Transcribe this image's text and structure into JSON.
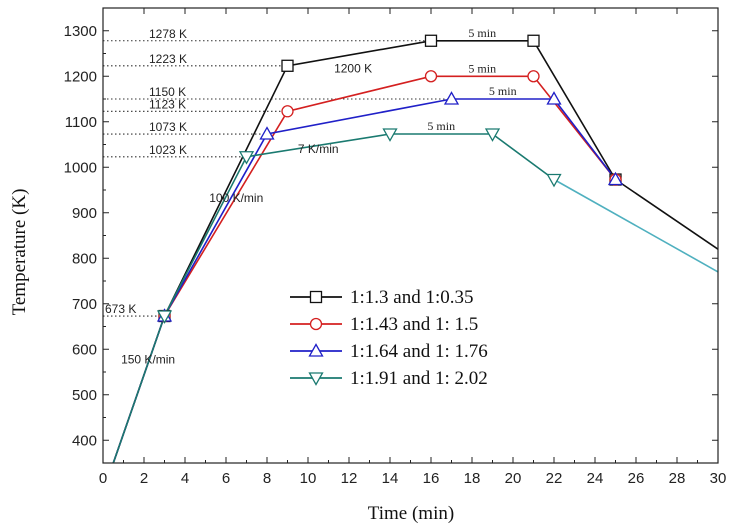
{
  "chart_data": {
    "type": "line",
    "xlabel": "Time (min)",
    "ylabel": "Temperature (K)",
    "xlim": [
      0,
      30
    ],
    "ylim": [
      350,
      1350
    ],
    "x_ticks": [
      0,
      2,
      4,
      6,
      8,
      10,
      12,
      14,
      16,
      18,
      20,
      22,
      24,
      26,
      28,
      30
    ],
    "y_ticks": [
      400,
      500,
      600,
      700,
      800,
      900,
      1000,
      1100,
      1200,
      1300
    ],
    "grid": false,
    "legend_position": "center-right",
    "series": [
      {
        "name": "1:1.3 and 1:0.35",
        "color": "#111111",
        "marker": "square",
        "points": [
          [
            0.5,
            350
          ],
          [
            3,
            673
          ],
          [
            9,
            1223
          ],
          [
            16,
            1278
          ],
          [
            21,
            1278
          ],
          [
            25,
            973
          ],
          [
            30,
            820
          ]
        ],
        "marker_points": [
          [
            3,
            673
          ],
          [
            9,
            1223
          ],
          [
            16,
            1278
          ],
          [
            21,
            1278
          ],
          [
            25,
            973
          ]
        ]
      },
      {
        "name": "1:1.43 and 1: 1.5",
        "color": "#d42020",
        "marker": "circle",
        "points": [
          [
            0.5,
            350
          ],
          [
            3,
            673
          ],
          [
            9,
            1123
          ],
          [
            16,
            1200
          ],
          [
            21,
            1200
          ],
          [
            25,
            973
          ]
        ],
        "marker_points": [
          [
            3,
            673
          ],
          [
            9,
            1123
          ],
          [
            16,
            1200
          ],
          [
            21,
            1200
          ],
          [
            25,
            973
          ]
        ]
      },
      {
        "name": "1:1.64 and 1: 1.76",
        "color": "#2020c8",
        "marker": "triangle-up",
        "points": [
          [
            0.5,
            350
          ],
          [
            3,
            673
          ],
          [
            8,
            1073
          ],
          [
            17,
            1150
          ],
          [
            22,
            1150
          ],
          [
            25,
            973
          ]
        ],
        "marker_points": [
          [
            3,
            673
          ],
          [
            8,
            1073
          ],
          [
            17,
            1150
          ],
          [
            22,
            1150
          ],
          [
            25,
            973
          ]
        ]
      },
      {
        "name": "1:1.91 and 1: 2.02",
        "color": "#1a7a70",
        "marker": "triangle-down",
        "points": [
          [
            0.5,
            350
          ],
          [
            3,
            673
          ],
          [
            7,
            1023
          ],
          [
            14,
            1073
          ],
          [
            19,
            1073
          ],
          [
            22,
            973
          ]
        ],
        "marker_points": [
          [
            3,
            673
          ],
          [
            7,
            1023
          ],
          [
            14,
            1073
          ],
          [
            19,
            1073
          ],
          [
            22,
            973
          ]
        ],
        "continuation": {
          "color": "#4fb0bf",
          "points": [
            [
              22,
              973
            ],
            [
              30,
              770
            ]
          ]
        }
      }
    ],
    "reference_lines": [
      {
        "label": "1278 K",
        "y": 1278,
        "x_end": 16
      },
      {
        "label": "1223 K",
        "y": 1223,
        "x_end": 9
      },
      {
        "label": "1150 K",
        "y": 1150,
        "x_end": 17
      },
      {
        "label": "1123 K",
        "y": 1123,
        "x_end": 9
      },
      {
        "label": "1073 K",
        "y": 1073,
        "x_end": 8
      },
      {
        "label": "1023 K",
        "y": 1023,
        "x_end": 7
      },
      {
        "label": "673 K",
        "y": 673,
        "x_end": 3
      }
    ],
    "annotations": [
      {
        "text": "1200 K",
        "x": 12.2,
        "y": 1200
      },
      {
        "text": "5 min",
        "x": 18.5,
        "y": 1278
      },
      {
        "text": "5 min",
        "x": 18.5,
        "y": 1200
      },
      {
        "text": "5 min",
        "x": 19.5,
        "y": 1150
      },
      {
        "text": "5 min",
        "x": 16.5,
        "y": 1073
      },
      {
        "text": "7 K/min",
        "x": 10.5,
        "y": 1023
      },
      {
        "text": "100 K/min",
        "x": 6.5,
        "y": 915
      },
      {
        "text": "150 K/min",
        "x": 2.2,
        "y": 560
      }
    ]
  }
}
